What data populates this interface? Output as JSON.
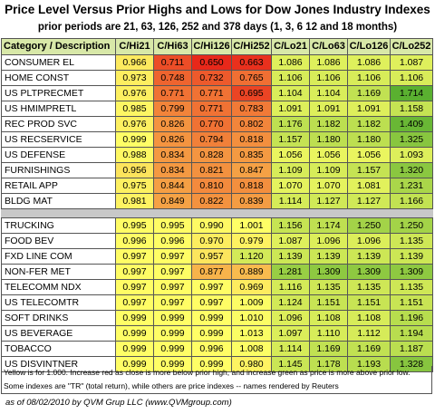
{
  "title": "Price Level Versus Prior Highs and Lows for Dow Jones Industry Indexes",
  "subtitle": "prior periods are 21, 63, 126, 252 and 378 days (1, 3, 6 12 and 18 months)",
  "headers": [
    "Category / Description",
    "C/Hi21",
    "C/Hi63",
    "C/Hi126",
    "C/Hi252",
    "C/Lo21",
    "C/Lo63",
    "C/Lo126",
    "C/Lo252"
  ],
  "group1": [
    {
      "name": "CONSUMER EL",
      "values": [
        "0.966",
        "0.711",
        "0.650",
        "0.663",
        "1.086",
        "1.086",
        "1.086",
        "1.087"
      ]
    },
    {
      "name": "HOME CONST",
      "values": [
        "0.973",
        "0.748",
        "0.732",
        "0.765",
        "1.106",
        "1.106",
        "1.106",
        "1.106"
      ]
    },
    {
      "name": "US PLTPRECMET",
      "values": [
        "0.976",
        "0.771",
        "0.771",
        "0.695",
        "1.104",
        "1.104",
        "1.169",
        "1.714"
      ]
    },
    {
      "name": "US HMIMPRETL",
      "values": [
        "0.985",
        "0.799",
        "0.771",
        "0.783",
        "1.091",
        "1.091",
        "1.091",
        "1.158"
      ]
    },
    {
      "name": "REC PROD SVC",
      "values": [
        "0.976",
        "0.826",
        "0.770",
        "0.802",
        "1.176",
        "1.182",
        "1.182",
        "1.409"
      ]
    },
    {
      "name": "US RECSERVICE",
      "values": [
        "0.999",
        "0.826",
        "0.794",
        "0.818",
        "1.157",
        "1.180",
        "1.180",
        "1.325"
      ]
    },
    {
      "name": "US DEFENSE",
      "values": [
        "0.988",
        "0.834",
        "0.828",
        "0.835",
        "1.056",
        "1.056",
        "1.056",
        "1.093"
      ]
    },
    {
      "name": "FURNISHINGS",
      "values": [
        "0.956",
        "0.834",
        "0.821",
        "0.847",
        "1.109",
        "1.109",
        "1.157",
        "1.320"
      ]
    },
    {
      "name": "RETAIL APP",
      "values": [
        "0.975",
        "0.844",
        "0.810",
        "0.818",
        "1.070",
        "1.070",
        "1.081",
        "1.231"
      ]
    },
    {
      "name": "BLDG MAT",
      "values": [
        "0.981",
        "0.849",
        "0.822",
        "0.839",
        "1.114",
        "1.127",
        "1.127",
        "1.166"
      ]
    }
  ],
  "group2": [
    {
      "name": "TRUCKING",
      "values": [
        "0.995",
        "0.995",
        "0.990",
        "1.001",
        "1.156",
        "1.174",
        "1.250",
        "1.250"
      ]
    },
    {
      "name": "FOOD BEV",
      "values": [
        "0.996",
        "0.996",
        "0.970",
        "0.979",
        "1.087",
        "1.096",
        "1.096",
        "1.135"
      ]
    },
    {
      "name": "FXD LINE COM",
      "values": [
        "0.997",
        "0.997",
        "0.957",
        "1.120",
        "1.139",
        "1.139",
        "1.139",
        "1.139"
      ]
    },
    {
      "name": "NON-FER MET",
      "values": [
        "0.997",
        "0.997",
        "0.877",
        "0.889",
        "1.281",
        "1.309",
        "1.309",
        "1.309"
      ]
    },
    {
      "name": "TELECOMM NDX",
      "values": [
        "0.997",
        "0.997",
        "0.997",
        "0.969",
        "1.116",
        "1.135",
        "1.135",
        "1.135"
      ]
    },
    {
      "name": "US TELECOMTR",
      "values": [
        "0.997",
        "0.997",
        "0.997",
        "1.009",
        "1.124",
        "1.151",
        "1.151",
        "1.151"
      ]
    },
    {
      "name": "SOFT DRINKS",
      "values": [
        "0.999",
        "0.999",
        "0.999",
        "1.010",
        "1.096",
        "1.108",
        "1.108",
        "1.196"
      ]
    },
    {
      "name": "US BEVERAGE",
      "values": [
        "0.999",
        "0.999",
        "0.999",
        "1.013",
        "1.097",
        "1.110",
        "1.112",
        "1.194"
      ]
    },
    {
      "name": "TOBACCO",
      "values": [
        "0.999",
        "0.999",
        "0.996",
        "1.008",
        "1.114",
        "1.169",
        "1.169",
        "1.187"
      ]
    },
    {
      "name": "US DISVINTNER",
      "values": [
        "0.999",
        "0.999",
        "0.999",
        "0.980",
        "1.145",
        "1.178",
        "1.193",
        "1.328"
      ]
    }
  ],
  "note1": "Yellow is for 1.000.  Increase red as close is more below prior high, and increase green as price is more above prior low.",
  "note2": "Some indexes are \"TR\" (total return), while others are price indexes -- names rendered by Reuters",
  "footer": "as of 08/02/2010  by QVM Grup LLC (www.QVMgroup.com)",
  "colors": {
    "header_bg": "#d8e8a8",
    "neutral": "#ffff66",
    "red": "#e8281a",
    "green": "#5ab030"
  }
}
